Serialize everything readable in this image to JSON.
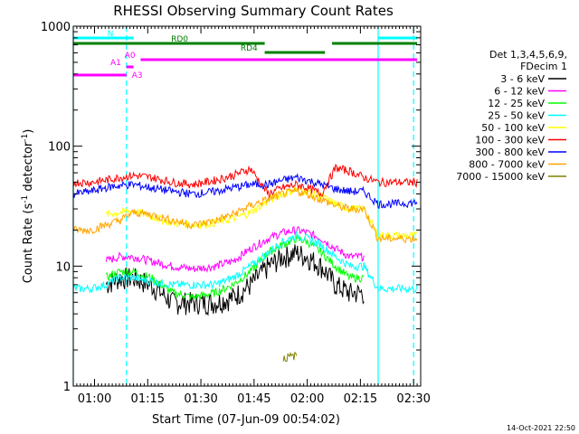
{
  "chart_data": {
    "type": "line",
    "title": "RHESSI Observing Summary Count Rates",
    "xlabel": "Start Time (07-Jun-09 00:54:02)",
    "ylabel_main": "Count Rate (s",
    "ylabel_sup1": "-1",
    "ylabel_mid": " detector",
    "ylabel_sup2": "-1",
    "ylabel_end": ")",
    "yscale": "log",
    "ylim": [
      1,
      1000
    ],
    "xlim": [
      0,
      98
    ],
    "x_units": "minutes since 00:54:02",
    "x_ticks": [
      {
        "label": "01:00",
        "value": 6
      },
      {
        "label": "01:15",
        "value": 21
      },
      {
        "label": "01:30",
        "value": 36
      },
      {
        "label": "01:45",
        "value": 51
      },
      {
        "label": "02:00",
        "value": 66
      },
      {
        "label": "02:15",
        "value": 81
      },
      {
        "label": "02:30",
        "value": 96
      }
    ],
    "y_ticks": [
      {
        "label": "1",
        "value": 1
      },
      {
        "label": "10",
        "value": 10
      },
      {
        "label": "100",
        "value": 100
      },
      {
        "label": "1000",
        "value": 1000
      }
    ],
    "legend_title": [
      "Det 1,3,4,5,6,9,",
      "FDecim 1"
    ],
    "legend_position": "right",
    "timestamp": "14-Oct-2021 22:50",
    "vlines": [
      {
        "x": 0,
        "style": "solid",
        "color": "#00ffff"
      },
      {
        "x": 15,
        "style": "dashed",
        "color": "#00ffff"
      },
      {
        "x": 86,
        "style": "solid",
        "color": "#00ffff"
      },
      {
        "x": 96,
        "style": "dashed",
        "color": "#00ffff"
      }
    ],
    "flag_bars": [
      {
        "label": "N",
        "color": "#00ffff",
        "level": 1,
        "segments": [
          [
            0,
            17
          ],
          [
            86,
            97
          ]
        ]
      },
      {
        "label": "RD0",
        "color": "#008000",
        "level": 2,
        "segments": [
          [
            0,
            54
          ],
          [
            73,
            97
          ]
        ]
      },
      {
        "label": "RD4",
        "color": "#008000",
        "level": 3,
        "segments": [
          [
            54,
            71
          ]
        ]
      },
      {
        "label": "A0",
        "color": "#ff00ff",
        "level": 4,
        "segments": [
          [
            19,
            97
          ]
        ]
      },
      {
        "label": "A1",
        "color": "#ff00ff",
        "level": 5,
        "segments": [
          [
            15,
            17
          ]
        ]
      },
      {
        "label": "A3",
        "color": "#ff00ff",
        "level": 6,
        "segments": [
          [
            0,
            15
          ]
        ]
      }
    ],
    "series": [
      {
        "name": "3 - 6 keV",
        "color": "#000000",
        "x": [
          0,
          5,
          9,
          13,
          17,
          22,
          28,
          34,
          40,
          45,
          50,
          55,
          59,
          63,
          66,
          70,
          74,
          78,
          82,
          86
        ],
        "values": [
          null,
          null,
          7,
          8,
          8,
          7,
          5,
          5,
          5,
          5.5,
          7,
          10,
          12,
          13,
          12,
          10,
          7,
          6,
          6,
          null
        ]
      },
      {
        "name": "6 - 12 keV",
        "color": "#ff00ff",
        "x": [
          0,
          5,
          9,
          13,
          17,
          22,
          28,
          34,
          40,
          45,
          50,
          55,
          59,
          63,
          66,
          70,
          74,
          78,
          82,
          86
        ],
        "values": [
          null,
          null,
          11,
          12,
          12,
          11,
          10,
          9.5,
          10,
          11,
          14,
          17,
          19,
          20,
          19,
          17,
          14,
          12,
          12,
          null
        ]
      },
      {
        "name": "12 - 25 keV",
        "color": "#00ff00",
        "x": [
          0,
          5,
          9,
          13,
          17,
          22,
          28,
          34,
          40,
          45,
          50,
          55,
          59,
          63,
          66,
          70,
          74,
          78,
          82,
          86
        ],
        "values": [
          null,
          null,
          8,
          9,
          9,
          8,
          6,
          5.5,
          6,
          7,
          9,
          13,
          15,
          17,
          16,
          13,
          10,
          8,
          8,
          null
        ]
      },
      {
        "name": "25 - 50 keV",
        "color": "#00ffff",
        "x": [
          0,
          5,
          9,
          13,
          17,
          22,
          28,
          34,
          40,
          45,
          50,
          55,
          59,
          63,
          66,
          70,
          74,
          78,
          82,
          86,
          90,
          97
        ],
        "values": [
          6.5,
          6.5,
          7,
          8,
          8,
          7.5,
          7,
          7,
          7,
          8,
          10,
          13,
          16,
          18,
          17,
          15,
          12,
          10,
          10,
          6.5,
          6.5,
          6.5
        ]
      },
      {
        "name": "50 - 100 keV",
        "color": "#ffff00",
        "x": [
          0,
          5,
          9,
          13,
          17,
          22,
          28,
          34,
          40,
          45,
          50,
          55,
          59,
          63,
          66,
          70,
          74,
          78,
          82,
          86,
          90,
          97
        ],
        "values": [
          null,
          null,
          27,
          28,
          29,
          26,
          23,
          22,
          23,
          25,
          28,
          35,
          40,
          44,
          42,
          38,
          33,
          30,
          30,
          18,
          18,
          18
        ]
      },
      {
        "name": "100 - 300 keV",
        "color": "#ff0000",
        "x": [
          0,
          5,
          9,
          13,
          17,
          22,
          28,
          34,
          40,
          45,
          50,
          55,
          59,
          63,
          66,
          70,
          74,
          78,
          82,
          86,
          90,
          97
        ],
        "values": [
          50,
          50,
          52,
          55,
          57,
          55,
          50,
          48,
          52,
          57,
          65,
          40,
          45,
          48,
          45,
          40,
          66,
          62,
          55,
          50,
          50,
          50
        ]
      },
      {
        "name": "300 - 800 keV",
        "color": "#0000ff",
        "x": [
          0,
          5,
          9,
          13,
          17,
          22,
          28,
          34,
          40,
          45,
          50,
          55,
          59,
          63,
          66,
          70,
          74,
          78,
          82,
          86,
          90,
          97
        ],
        "values": [
          40,
          42,
          45,
          47,
          48,
          45,
          42,
          40,
          42,
          45,
          48,
          48,
          52,
          55,
          52,
          48,
          44,
          42,
          42,
          33,
          33,
          34
        ]
      },
      {
        "name": "800 - 7000 keV",
        "color": "#ffa500",
        "x": [
          0,
          5,
          9,
          13,
          17,
          22,
          28,
          34,
          40,
          45,
          50,
          55,
          59,
          63,
          66,
          70,
          74,
          78,
          82,
          86,
          90,
          97
        ],
        "values": [
          20,
          20,
          22,
          24,
          28,
          27,
          24,
          22,
          24,
          27,
          32,
          36,
          40,
          42,
          40,
          36,
          32,
          30,
          30,
          17,
          17,
          17
        ]
      },
      {
        "name": "7000 - 15000 keV",
        "color": "#808000",
        "x": [
          0,
          5,
          9,
          13,
          17,
          22,
          28,
          34,
          40,
          45,
          50,
          55,
          59,
          63,
          66,
          70,
          74,
          78,
          82,
          86
        ],
        "values": [
          null,
          null,
          null,
          null,
          null,
          null,
          null,
          null,
          null,
          null,
          null,
          null,
          1.7,
          1.8,
          null,
          null,
          null,
          null,
          null,
          null
        ]
      }
    ]
  }
}
